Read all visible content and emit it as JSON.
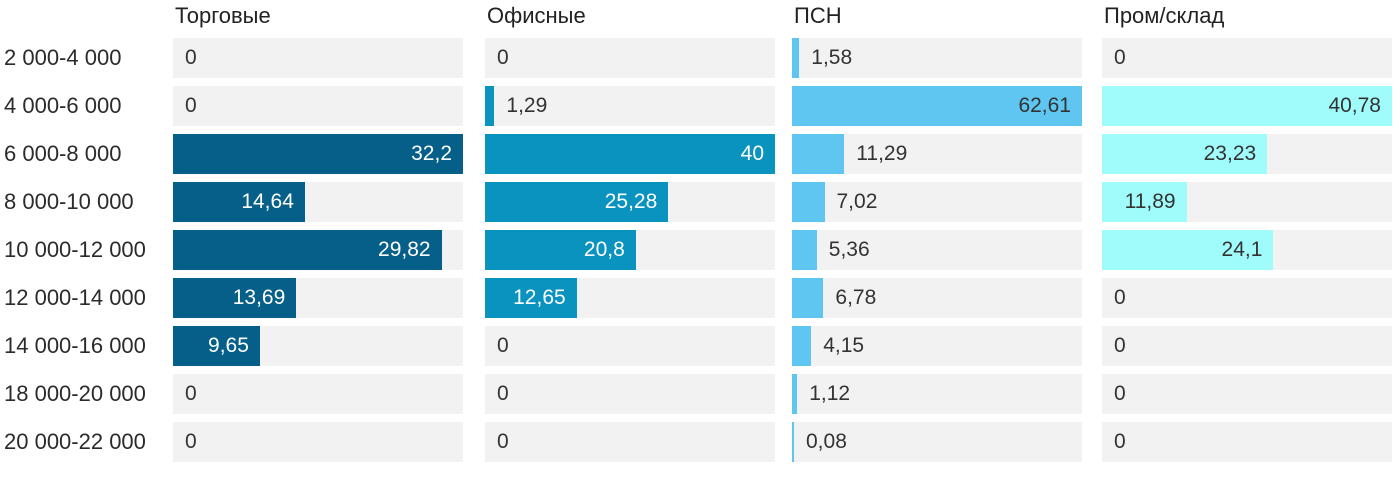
{
  "chart_data": {
    "type": "bar",
    "orientation": "horizontal",
    "title": "",
    "xlabel": "",
    "ylabel": "",
    "grid": false,
    "legend_position": "column-headers-top",
    "decimal_separator": ",",
    "categories": [
      "2 000-4 000",
      "4 000-6 000",
      "6 000-8 000",
      "8 000-10 000",
      "10 000-12 000",
      "12 000-14 000",
      "14 000-16 000",
      "18 000-20 000",
      "20 000-22 000"
    ],
    "series": [
      {
        "name": "Торговые",
        "color": "#065f88",
        "inside_label_color": "#ffffff",
        "axis_max": 32.2,
        "values": [
          0,
          0,
          32.2,
          14.64,
          29.82,
          13.69,
          9.65,
          0,
          0
        ],
        "display": [
          "0",
          "0",
          "32,2",
          "14,64",
          "29,82",
          "13,69",
          "9,65",
          "0",
          "0"
        ]
      },
      {
        "name": "Офисные",
        "color": "#0b93c0",
        "inside_label_color": "#ffffff",
        "axis_max": 40,
        "values": [
          0,
          1.29,
          40,
          25.28,
          20.8,
          12.65,
          0,
          0,
          0
        ],
        "display": [
          "0",
          "1,29",
          "40",
          "25,28",
          "20,8",
          "12,65",
          "0",
          "0",
          "0"
        ]
      },
      {
        "name": "ПСН",
        "color": "#5ec6f0",
        "inside_label_color": "#333333",
        "axis_max": 62.61,
        "values": [
          1.58,
          62.61,
          11.29,
          7.02,
          5.36,
          6.78,
          4.15,
          1.12,
          0.08
        ],
        "display": [
          "1,58",
          "62,61",
          "11,29",
          "7,02",
          "5,36",
          "6,78",
          "4,15",
          "1,12",
          "0,08"
        ]
      },
      {
        "name": "Пром/склад",
        "color": "#a0fcfa",
        "inside_label_color": "#333333",
        "axis_max": 40.78,
        "values": [
          0,
          40.78,
          23.23,
          11.89,
          24.1,
          0,
          0,
          0,
          0
        ],
        "display": [
          "0",
          "40,78",
          "23,23",
          "11,89",
          "24,1",
          "0",
          "0",
          "0",
          "0"
        ]
      }
    ],
    "colors": {
      "track": "#f2f2f2",
      "outside_label": "#333333",
      "row_label": "#2b2b2b",
      "header": "#222222",
      "background": "#ffffff"
    }
  }
}
